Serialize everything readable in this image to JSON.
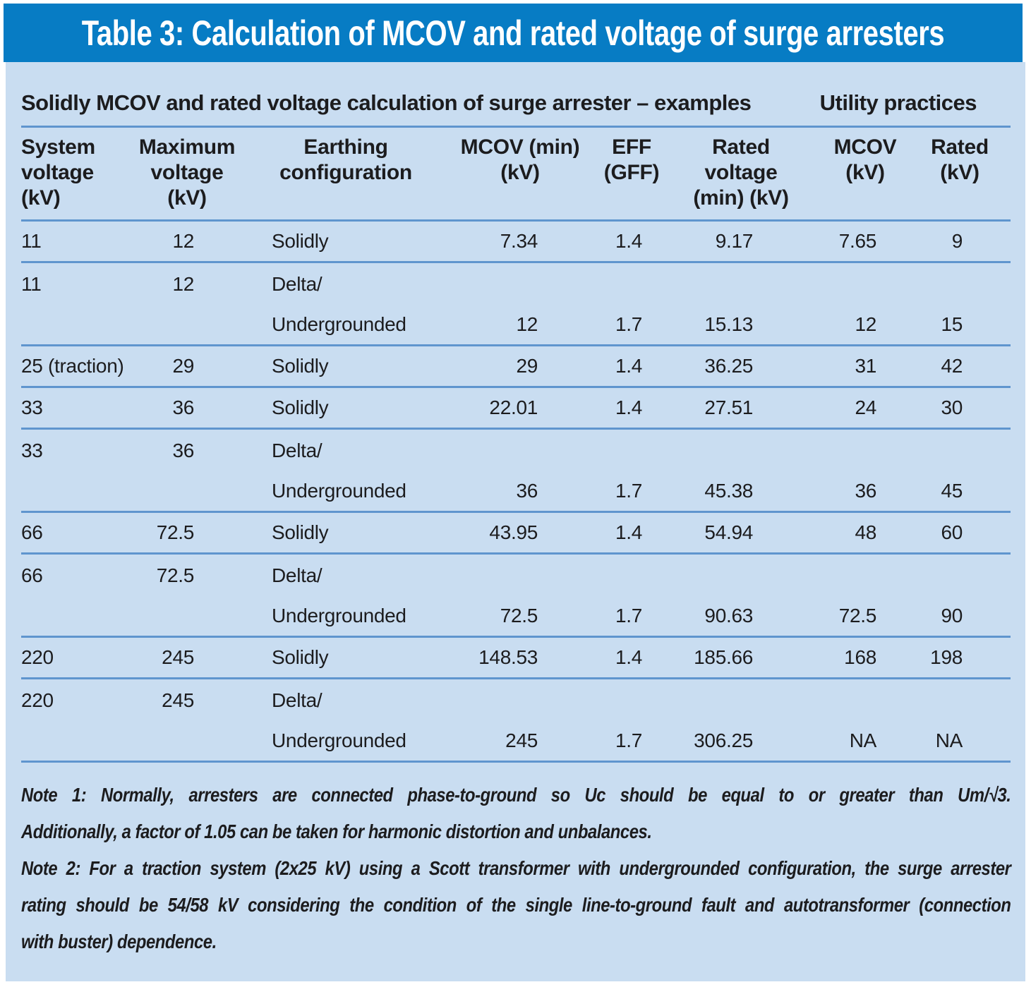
{
  "title": "Table 3: Calculation of MCOV and rated voltage of surge arresters",
  "subheader": {
    "left": "Solidly MCOV and rated voltage calculation of surge arrester – examples",
    "right": "Utility practices"
  },
  "table": {
    "columns": [
      {
        "id": "system-voltage",
        "lines": [
          "System",
          "voltage",
          "(kV)"
        ]
      },
      {
        "id": "maximum-voltage",
        "lines": [
          "Maximum",
          "voltage",
          "(kV)"
        ]
      },
      {
        "id": "earthing-configuration",
        "lines": [
          "Earthing",
          "configuration"
        ]
      },
      {
        "id": "mcov-min",
        "lines": [
          "MCOV (min)",
          "(kV)"
        ]
      },
      {
        "id": "eff-gff",
        "lines": [
          "EFF",
          "(GFF)"
        ]
      },
      {
        "id": "rated-voltage-min",
        "lines": [
          "Rated",
          "voltage",
          "(min) (kV)"
        ]
      },
      {
        "id": "utility-mcov",
        "lines": [
          "MCOV",
          "(kV)"
        ]
      },
      {
        "id": "utility-rated",
        "lines": [
          "Rated",
          "(kV)"
        ]
      }
    ],
    "rows": [
      {
        "cells": [
          "11",
          "12",
          "Solidly",
          "7.34",
          "1.4",
          "9.17",
          "7.65",
          "9"
        ],
        "rule": true
      },
      {
        "cells": [
          "11",
          "12",
          "Delta/",
          "",
          "",
          "",
          "",
          ""
        ],
        "rule": false
      },
      {
        "cells": [
          "",
          "",
          "Undergrounded",
          "12",
          "1.7",
          "15.13",
          "12",
          "15"
        ],
        "rule": true
      },
      {
        "cells": [
          "25 (traction)",
          "29",
          "Solidly",
          "29",
          "1.4",
          "36.25",
          "31",
          "42"
        ],
        "rule": true
      },
      {
        "cells": [
          "33",
          "36",
          "Solidly",
          "22.01",
          "1.4",
          "27.51",
          "24",
          "30"
        ],
        "rule": true
      },
      {
        "cells": [
          "33",
          "36",
          "Delta/",
          "",
          "",
          "",
          "",
          ""
        ],
        "rule": false
      },
      {
        "cells": [
          "",
          "",
          "Undergrounded",
          "36",
          "1.7",
          "45.38",
          "36",
          "45"
        ],
        "rule": true
      },
      {
        "cells": [
          "66",
          "72.5",
          "Solidly",
          "43.95",
          "1.4",
          "54.94",
          "48",
          "60"
        ],
        "rule": true
      },
      {
        "cells": [
          "66",
          "72.5",
          "Delta/",
          "",
          "",
          "",
          "",
          ""
        ],
        "rule": false
      },
      {
        "cells": [
          "",
          "",
          "Undergrounded",
          "72.5",
          "1.7",
          "90.63",
          "72.5",
          "90"
        ],
        "rule": true
      },
      {
        "cells": [
          "220",
          "245",
          "Solidly",
          "148.53",
          "1.4",
          "185.66",
          "168",
          "198"
        ],
        "rule": true
      },
      {
        "cells": [
          "220",
          "245",
          "Delta/",
          "",
          "",
          "",
          "",
          ""
        ],
        "rule": false
      },
      {
        "cells": [
          "",
          "",
          "Undergrounded",
          "245",
          "1.7",
          "306.25",
          "NA",
          "NA"
        ],
        "rule": true
      }
    ]
  },
  "notes": [
    {
      "lines": [
        {
          "text": "Note 1: Normally, arresters are connected phase-to-ground so Uc should be equal to or greater than Um/√3.",
          "justify": true
        },
        {
          "text": "Additionally, a factor of 1.05 can be taken for harmonic distortion and unbalances.",
          "justify": false
        }
      ]
    },
    {
      "lines": [
        {
          "text": "Note 2: For a traction system (2x25 kV) using a Scott transformer with undergrounded configuration, the surge arrester",
          "justify": true
        },
        {
          "text": "rating should be 54/58 kV considering the condition of the single line-to-ground fault and autotransformer (connection",
          "justify": true
        },
        {
          "text": "with buster) dependence.",
          "justify": false
        }
      ]
    }
  ],
  "colors": {
    "title_bg": "#077cc4",
    "panel_bg": "#c9ddf1",
    "rule": "#5f95ce",
    "text": "#1c1c1e",
    "title_text": "#ffffff"
  }
}
